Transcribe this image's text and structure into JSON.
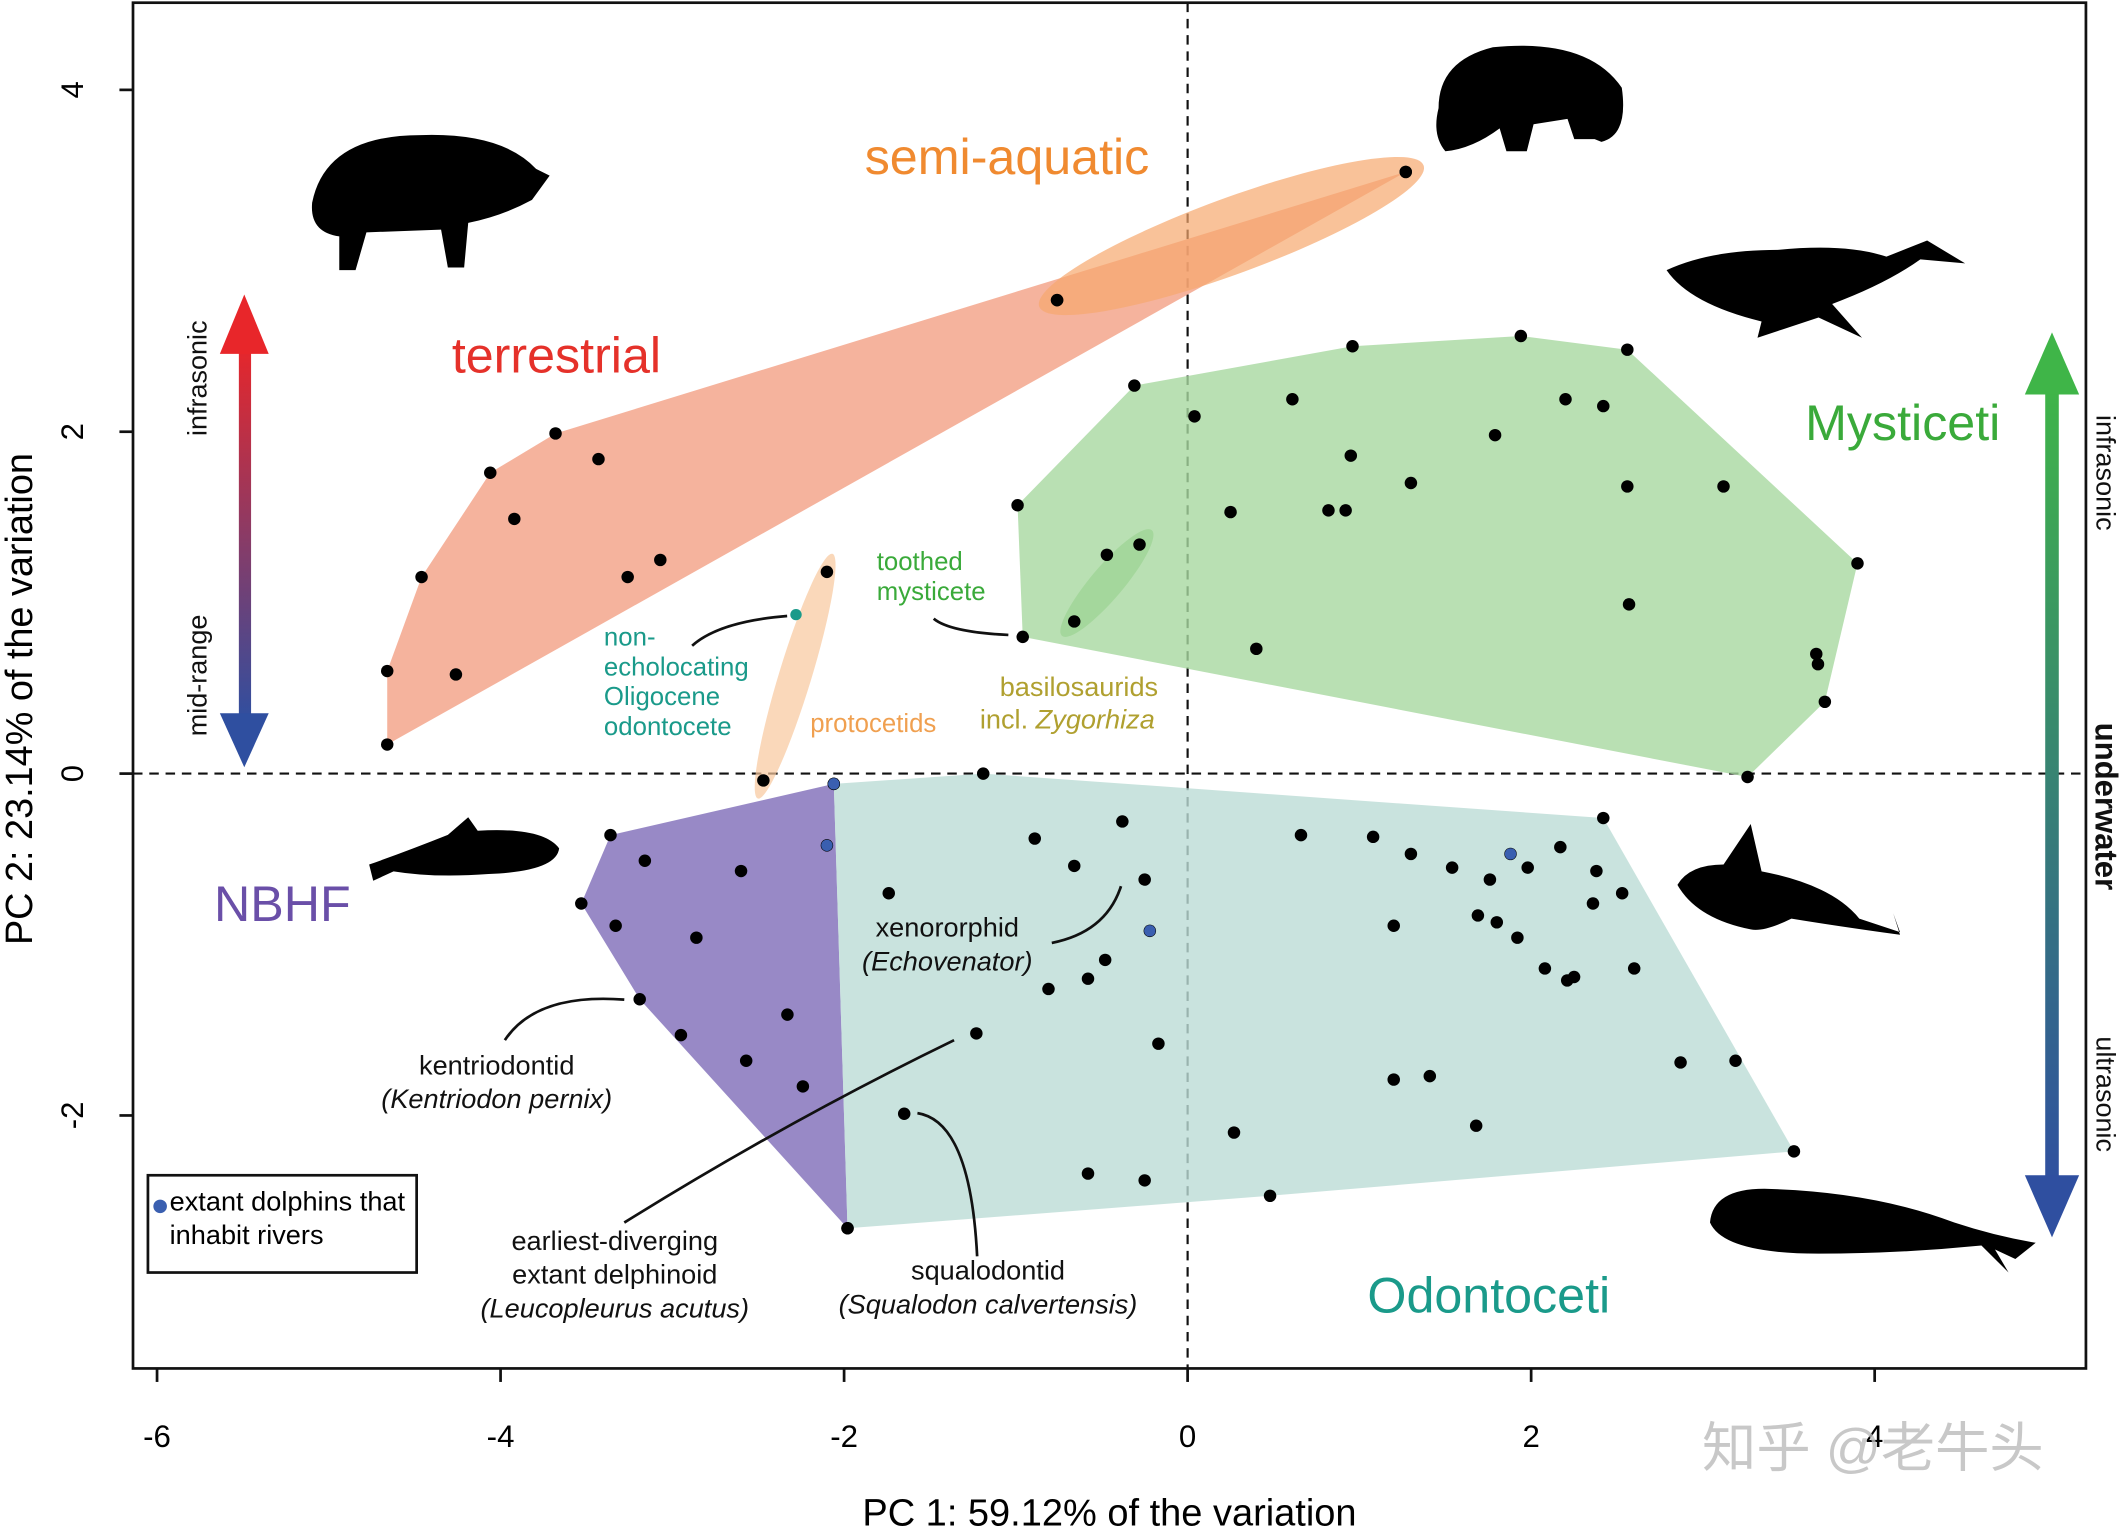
{
  "chart_data": {
    "type": "scatter",
    "x_label": "PC 1: 59.12% of the variation",
    "y_label": "PC 2: 23.14% of the variation",
    "xlim": [
      -6.14,
      5.23
    ],
    "ylim": [
      -3.48,
      4.51
    ],
    "xticks": [
      -6,
      -4,
      -2,
      0,
      2,
      4
    ],
    "yticks": [
      -2,
      0,
      2,
      4
    ],
    "series": [
      {
        "name": "terrestrial",
        "color": "#f29a7c",
        "label_color": "#e5312a",
        "marker_color": "#000000",
        "x": [
          -4.66,
          -4.66,
          -4.46,
          -4.26,
          -4.06,
          -3.92,
          -3.68,
          -3.43,
          -3.26,
          -3.07,
          -0.76,
          1.27
        ],
        "values": [
          0.17,
          0.6,
          1.15,
          0.58,
          1.76,
          1.49,
          1.99,
          1.84,
          1.15,
          1.25,
          2.77,
          3.52
        ]
      },
      {
        "name": "semi-aquatic",
        "color": "#f6a86e",
        "label_color": "#f08a30",
        "marker_color": "#000000",
        "x": [
          -0.76,
          1.27
        ],
        "values": [
          2.77,
          3.52
        ]
      },
      {
        "name": "protocetids",
        "color": "#f8c89c",
        "label_color": "#f0a050",
        "marker_color": "#000000",
        "x": [
          -2.47,
          -2.1
        ],
        "values": [
          -0.04,
          1.18
        ]
      },
      {
        "name": "non-echolocating Oligocene odontocete",
        "color": "#1a9a8a",
        "marker_color": "#1a9a8a",
        "x": [
          -2.28
        ],
        "values": [
          0.93
        ]
      },
      {
        "name": "toothed mysticete",
        "color": "#6cbf5a",
        "label_color": "#3aaa3a",
        "marker_color": "#000000",
        "x": [
          -0.66,
          -0.28
        ],
        "values": [
          0.89,
          1.34
        ]
      },
      {
        "name": "Mysticeti",
        "color": "#a7d8a0",
        "label_color": "#3aaa3a",
        "marker_color": "#000000",
        "x": [
          -0.99,
          -0.96,
          -0.47,
          -0.31,
          0.04,
          0.25,
          0.4,
          0.61,
          0.96,
          0.95,
          0.82,
          0.92,
          1.3,
          1.79,
          1.94,
          2.2,
          2.42,
          2.56,
          2.56,
          2.57,
          3.12,
          3.9,
          3.66,
          3.67,
          3.71,
          3.26
        ],
        "values": [
          1.57,
          0.8,
          1.28,
          2.27,
          2.09,
          1.53,
          0.73,
          2.19,
          2.5,
          1.86,
          1.54,
          1.54,
          1.7,
          1.98,
          2.56,
          2.19,
          2.15,
          2.48,
          1.68,
          0.99,
          1.68,
          1.23,
          0.7,
          0.64,
          0.42,
          -0.02
        ]
      },
      {
        "name": "NBHF",
        "color": "#7e6bb8",
        "label_color": "#6a4fa8",
        "marker_color": "#000000",
        "x": [
          -2.06,
          -2.1,
          -3.36,
          -3.53,
          -3.16,
          -3.33,
          -3.19,
          -2.86,
          -2.6,
          -2.95,
          -2.57,
          -2.33,
          -2.24,
          -1.98
        ],
        "values": [
          -0.06,
          -0.42,
          -0.36,
          -0.76,
          -0.51,
          -0.89,
          -1.32,
          -0.96,
          -0.57,
          -1.53,
          -1.68,
          -1.41,
          -1.83,
          -2.66
        ]
      },
      {
        "name": "Odontoceti",
        "color": "#bcdcd6",
        "label_color": "#1a9a8a",
        "marker_color": "#000000",
        "x": [
          -2.06,
          -1.98,
          -1.19,
          -1.74,
          -0.89,
          -0.66,
          -0.38,
          -0.25,
          -0.22,
          -0.48,
          -0.58,
          -0.81,
          -1.23,
          -0.17,
          -1.65,
          -0.58,
          -0.25,
          0.27,
          0.48,
          0.66,
          1.08,
          1.3,
          1.2,
          1.54,
          1.69,
          1.76,
          1.88,
          1.8,
          1.98,
          1.92,
          2.17,
          2.08,
          2.21,
          2.25,
          2.36,
          2.38,
          2.42,
          2.53,
          2.6,
          2.87,
          3.19,
          3.53,
          1.2,
          1.41,
          1.68
        ],
        "values": [
          -0.06,
          -2.66,
          0.0,
          -0.7,
          -0.38,
          -0.54,
          -0.28,
          -0.62,
          -0.92,
          -1.09,
          -1.2,
          -1.26,
          -1.52,
          -1.58,
          -1.99,
          -2.34,
          -2.38,
          -2.1,
          -2.47,
          -0.36,
          -0.37,
          -0.47,
          -0.89,
          -0.55,
          -0.83,
          -0.62,
          -0.47,
          -0.87,
          -0.55,
          -0.96,
          -0.43,
          -1.14,
          -1.21,
          -1.19,
          -0.76,
          -0.57,
          -0.26,
          -0.7,
          -1.14,
          -1.69,
          -1.68,
          -2.21,
          -1.79,
          -1.77,
          -2.06
        ]
      },
      {
        "name": "extant dolphins that inhabit rivers",
        "color": "#3a5fb0",
        "marker_color": "#3a5fb0",
        "x": [
          -2.06,
          -2.1,
          -0.22,
          1.88
        ],
        "values": [
          -0.06,
          -0.42,
          -0.92,
          -0.47
        ]
      }
    ],
    "annotations": [
      "infrasonic",
      "mid-range",
      "infrasonic",
      "underwater",
      "ultrasonic",
      "basilosaurids",
      "incl.",
      "Zygorhiza",
      "xenororphid",
      "(Echovenator)",
      "kentriodontid",
      "(Kentriodon pernix)",
      "earliest-diverging",
      "extant delphinoid",
      "(Leucopleurus acutus)",
      "squalodontid",
      "(Squalodon calvertensis)",
      "知乎 @老牛头"
    ]
  }
}
